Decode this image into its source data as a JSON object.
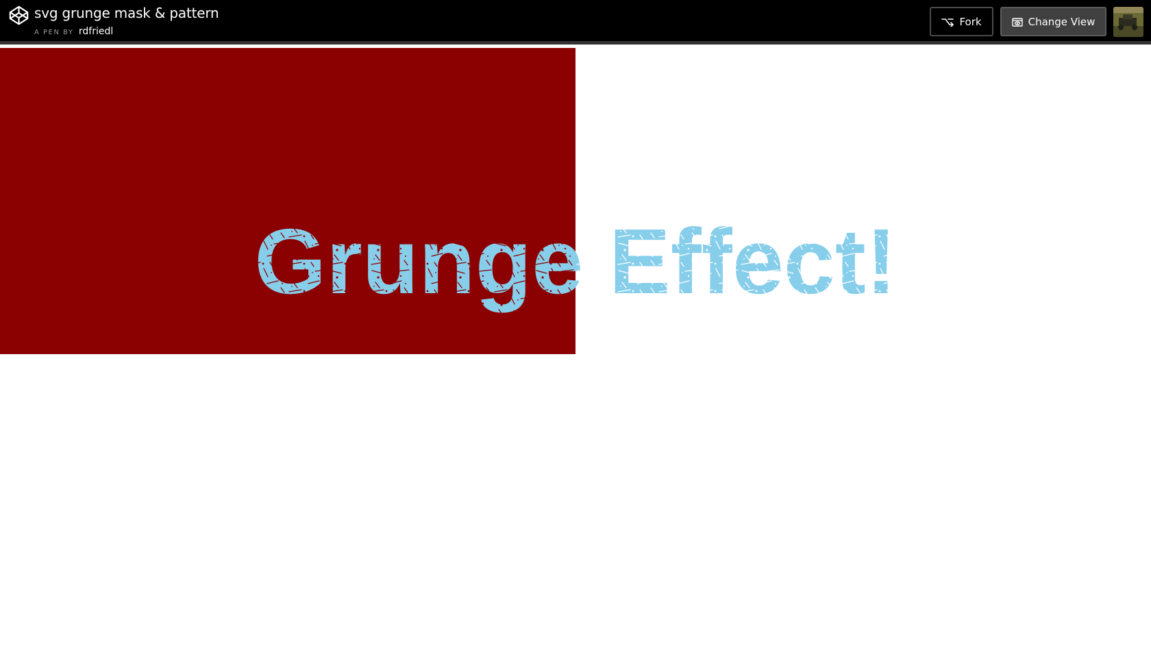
{
  "header": {
    "title": "svg grunge mask & pattern",
    "byline_prefix": "A PEN BY",
    "author": "rdfriedl",
    "logo_icon": "codepen-logo-icon",
    "fork_label": "Fork",
    "fork_icon": "fork-icon",
    "change_view_label": "Change View",
    "change_view_icon": "change-view-icon",
    "avatar_icon": "user-avatar"
  },
  "preview": {
    "text": "Grunge Effect!",
    "box_color": "#8b0000",
    "text_color": "#87ceeb",
    "background": "#ffffff"
  },
  "colors": {
    "topbar": "#000000",
    "topbar_border": "#333333",
    "button_dark": "#000000",
    "button_gray": "#404040"
  }
}
